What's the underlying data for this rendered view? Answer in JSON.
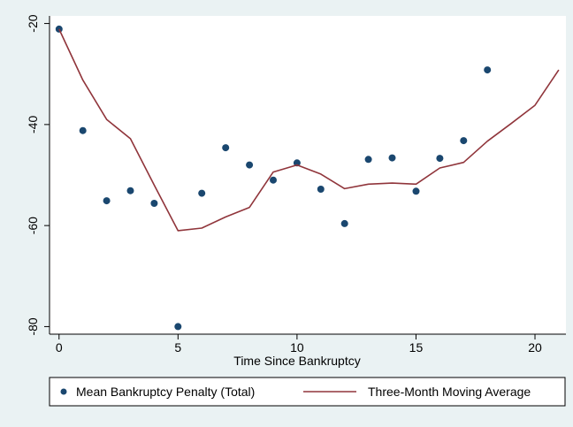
{
  "chart_data": {
    "type": "scatter",
    "title": "",
    "xlabel": "Time Since Bankruptcy",
    "ylabel": "",
    "xlim": [
      -0.4,
      21.3
    ],
    "ylim": [
      -81.5,
      -18.5
    ],
    "xticks": [
      0,
      5,
      10,
      15,
      20
    ],
    "yticks": [
      -20,
      -40,
      -60,
      -80
    ],
    "grid": false,
    "legend_position": "bottom",
    "series": [
      {
        "name": "Mean Bankruptcy Penalty (Total)",
        "kind": "scatter",
        "color": "#1a476f",
        "x": [
          0,
          1,
          2,
          3,
          4,
          5,
          6,
          7,
          8,
          9,
          10,
          11,
          12,
          13,
          14,
          15,
          16,
          17,
          18
        ],
        "y": [
          -21.1,
          -41.2,
          -55.1,
          -53.1,
          -55.6,
          -80.0,
          -53.6,
          -44.6,
          -48.0,
          -51.0,
          -47.6,
          -52.8,
          -59.6,
          -46.9,
          -46.6,
          -53.2,
          -46.7,
          -43.2,
          -29.2
        ]
      },
      {
        "name": "Three-Month Moving Average",
        "kind": "line",
        "color": "#90353b",
        "x": [
          0,
          1,
          2,
          3,
          4,
          5,
          6,
          7,
          8,
          9,
          10,
          11,
          12,
          13,
          14,
          15,
          16,
          17,
          18,
          19,
          20,
          21
        ],
        "y": [
          -21.1,
          -31.2,
          -39.0,
          -42.8,
          -52.0,
          -61.0,
          -60.5,
          -58.3,
          -56.4,
          -49.4,
          -48.0,
          -49.8,
          -52.7,
          -51.8,
          -51.6,
          -51.8,
          -48.6,
          -47.5,
          -43.3,
          -39.8,
          -36.2,
          -29.2
        ]
      }
    ]
  }
}
